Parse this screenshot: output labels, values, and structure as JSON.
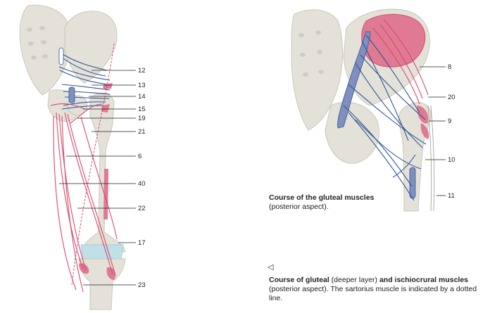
{
  "left_labels": [
    "12",
    "13",
    "14",
    "15",
    "19",
    "21",
    "6",
    "40",
    "22",
    "17",
    "23"
  ],
  "right_labels": [
    "8",
    "20",
    "9",
    "10",
    "11"
  ],
  "caption1": {
    "title": "Course of the gluteal muscles",
    "subtitle": "(posterior aspect)."
  },
  "caption2": {
    "arrow": "◁",
    "title_bold_1": "Course of gluteal",
    "title_normal": " (deeper layer) ",
    "title_bold_2": "and ischiocrural muscles",
    "body": "(posterior aspect). The sartorius muscle is indicated by a dotted line."
  },
  "colors": {
    "bone": "#e4e2d8",
    "bone_stroke": "#c9c6ba",
    "muscle_blue": "#2f5596",
    "muscle_blue_fill": "#7f8fbf",
    "muscle_red": "#d64a6b",
    "muscle_red_fill": "#e07a93",
    "cartilage": "#bfe0e8"
  }
}
